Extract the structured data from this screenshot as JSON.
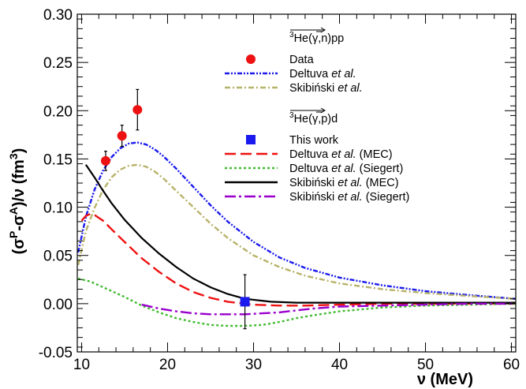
{
  "chart_data": {
    "type": "line",
    "xlabel": "ν (MeV)",
    "ylabel": "(σP-σA)/ν (fm3)",
    "ylabel_parts": [
      "(σ",
      "P",
      "-σ",
      "A",
      ")/ν (fm",
      "3",
      ")"
    ],
    "xlim": [
      9.5,
      60.5
    ],
    "ylim": [
      -0.05,
      0.3
    ],
    "x_ticks": [
      10,
      20,
      30,
      40,
      50,
      60
    ],
    "x_tick_labels": [
      "10",
      "20",
      "30",
      "40",
      "50",
      "60"
    ],
    "y_ticks": [
      -0.05,
      0.0,
      0.05,
      0.1,
      0.15,
      0.2,
      0.25,
      0.3
    ],
    "y_tick_labels": [
      "-0.05",
      "0.00",
      "0.05",
      "0.10",
      "0.15",
      "0.20",
      "0.25",
      "0.30"
    ],
    "grid": false,
    "legend_position": "top-right",
    "legend_groups": [
      {
        "header_base": "He(γ,n)pp",
        "header_parts": {
          "mass": "3",
          "pre": "He(",
          "mid": "γ",
          "post": ",n)pp"
        },
        "entries": [
          {
            "label_parts": [
              "Data"
            ],
            "series": "data_npp"
          },
          {
            "label_parts": [
              "Deltuva ",
              "et al.",
              ""
            ],
            "series": "deltuva_npp"
          },
          {
            "label_parts": [
              "Skibiński ",
              "et al.",
              ""
            ],
            "series": "skibinski_npp"
          }
        ]
      },
      {
        "header_base": "He(γ,p)d",
        "header_parts": {
          "mass": "3",
          "pre": "He(",
          "mid": "γ",
          "post": ",p)d"
        },
        "entries": [
          {
            "label_parts": [
              "This work"
            ],
            "series": "this_work"
          },
          {
            "label_parts": [
              "Deltuva ",
              "et al.",
              " (MEC)"
            ],
            "series": "deltuva_mec"
          },
          {
            "label_parts": [
              "Deltuva ",
              "et al.",
              " (Siegert)"
            ],
            "series": "deltuva_siegert"
          },
          {
            "label_parts": [
              "Skibiński ",
              "et al.",
              " (MEC)"
            ],
            "series": "skibinski_mec"
          },
          {
            "label_parts": [
              "Skibiński ",
              "et al.",
              " (Siegert)"
            ],
            "series": "skibinski_siegert"
          }
        ]
      }
    ],
    "points": [
      {
        "key": "data_npp",
        "marker": "circle",
        "color": "#ee1111",
        "x": [
          12.8,
          14.7,
          16.5
        ],
        "y": [
          0.148,
          0.174,
          0.201
        ],
        "yerr": [
          0.01,
          0.011,
          0.021
        ]
      },
      {
        "key": "this_work",
        "marker": "square",
        "color": "#1a1aee",
        "x": [
          29.0
        ],
        "y": [
          0.002
        ],
        "yerr": [
          0.028
        ]
      }
    ],
    "series": [
      {
        "key": "deltuva_npp",
        "color": "#1a1aee",
        "dash": "dashdotdot",
        "x": [
          9.6,
          10.5,
          11.5,
          12.5,
          13.5,
          14.5,
          15.5,
          16.5,
          17.5,
          18.5,
          19.5,
          21,
          23,
          25,
          27,
          30,
          33,
          36,
          40,
          45,
          50,
          55,
          60.5
        ],
        "y": [
          0.053,
          0.09,
          0.118,
          0.138,
          0.152,
          0.161,
          0.166,
          0.167,
          0.165,
          0.16,
          0.153,
          0.14,
          0.121,
          0.102,
          0.085,
          0.064,
          0.048,
          0.037,
          0.027,
          0.019,
          0.013,
          0.009,
          0.005
        ]
      },
      {
        "key": "skibinski_npp",
        "color": "#b8b36a",
        "dash": "dashdot",
        "x": [
          9.6,
          10.5,
          11.5,
          12.5,
          13.5,
          14.5,
          15.5,
          16.5,
          17.5,
          18.5,
          19.5,
          21,
          23,
          25,
          27,
          30,
          33,
          36,
          40,
          45,
          50,
          55,
          60.5
        ],
        "y": [
          0.04,
          0.075,
          0.099,
          0.118,
          0.131,
          0.139,
          0.143,
          0.144,
          0.142,
          0.137,
          0.13,
          0.117,
          0.1,
          0.083,
          0.068,
          0.05,
          0.038,
          0.029,
          0.021,
          0.015,
          0.011,
          0.008,
          0.005
        ]
      },
      {
        "key": "deltuva_mec",
        "color": "#ee1111",
        "dash": "longdash",
        "x": [
          10.0,
          10.5,
          11.0,
          11.5,
          12.5,
          13.5,
          15,
          17,
          19,
          21,
          23,
          25,
          27,
          30,
          33,
          36,
          40,
          45,
          50,
          55,
          60.5
        ],
        "y": [
          0.086,
          0.091,
          0.093,
          0.092,
          0.086,
          0.077,
          0.064,
          0.047,
          0.033,
          0.021,
          0.012,
          0.006,
          0.002,
          -0.001,
          -0.002,
          -0.002,
          -0.001,
          0.0,
          0.0,
          0.0,
          0.0
        ]
      },
      {
        "key": "deltuva_siegert",
        "color": "#44bb33",
        "dash": "dot",
        "x": [
          9.6,
          11,
          13,
          15,
          17,
          19,
          21,
          23,
          25,
          27,
          29,
          31,
          33,
          35,
          37,
          40,
          45,
          50,
          55,
          60.5
        ],
        "y": [
          0.026,
          0.023,
          0.015,
          0.007,
          -0.002,
          -0.009,
          -0.015,
          -0.019,
          -0.022,
          -0.023,
          -0.023,
          -0.022,
          -0.019,
          -0.015,
          -0.012,
          -0.008,
          -0.004,
          -0.002,
          -0.001,
          0.0
        ]
      },
      {
        "key": "skibinski_mec",
        "color": "#000000",
        "dash": "solid",
        "x": [
          10.5,
          11.5,
          12.5,
          13.5,
          15,
          17,
          19,
          21,
          23,
          25,
          27,
          29,
          32,
          35,
          40,
          45,
          50,
          55,
          60.5
        ],
        "y": [
          0.144,
          0.131,
          0.117,
          0.104,
          0.087,
          0.068,
          0.052,
          0.038,
          0.026,
          0.017,
          0.01,
          0.005,
          0.002,
          0.001,
          0.001,
          0.001,
          0.001,
          0.001,
          0.001
        ]
      },
      {
        "key": "skibinski_siegert",
        "color": "#9900cc",
        "dash": "longdashdot",
        "x": [
          17,
          19,
          21,
          23,
          25,
          27,
          29,
          31,
          33,
          35,
          37,
          40,
          45,
          50,
          55,
          60.5
        ],
        "y": [
          -0.001,
          -0.005,
          -0.008,
          -0.01,
          -0.011,
          -0.011,
          -0.011,
          -0.01,
          -0.009,
          -0.007,
          -0.005,
          -0.003,
          -0.002,
          -0.001,
          0.0,
          0.0
        ]
      }
    ]
  }
}
